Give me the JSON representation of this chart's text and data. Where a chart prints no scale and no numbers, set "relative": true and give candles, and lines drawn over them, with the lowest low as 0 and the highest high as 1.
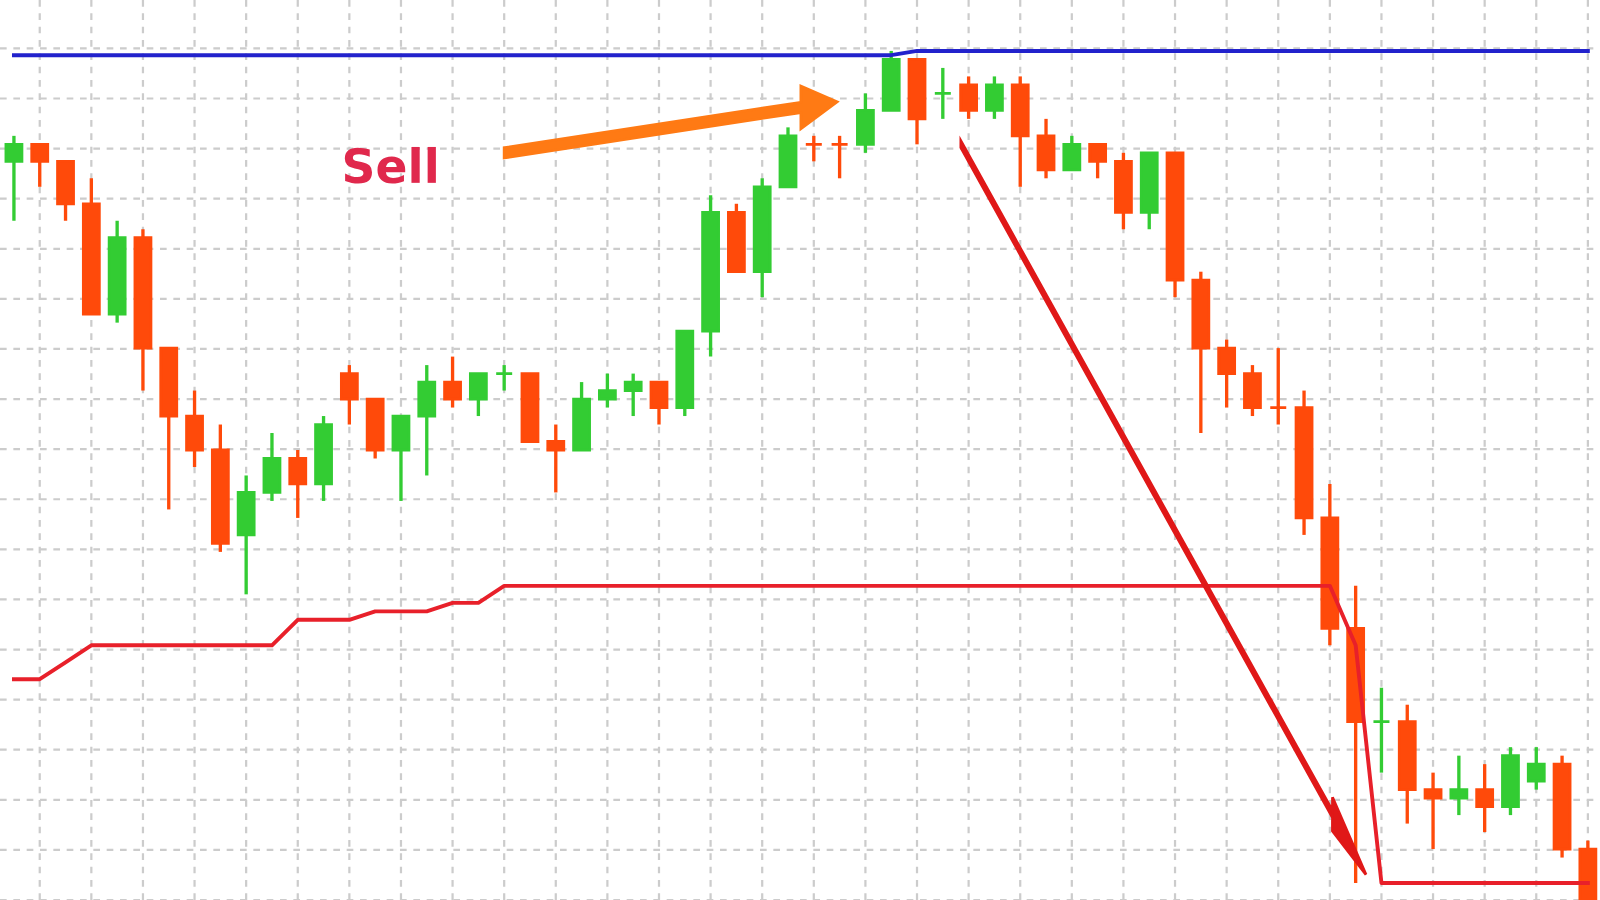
{
  "chart_data": {
    "type": "candlestick",
    "relative": true,
    "grid": true,
    "annotations": [
      "Sell"
    ],
    "categories": [
      null,
      null,
      null,
      null,
      null,
      null,
      null,
      null,
      null,
      null,
      null,
      null,
      null,
      null,
      null,
      null,
      null,
      null,
      null,
      null,
      null,
      null,
      null,
      null,
      null,
      null,
      null,
      null,
      null,
      null,
      null,
      null,
      null,
      null,
      null,
      null,
      null,
      null,
      null,
      null,
      null,
      null,
      null,
      null,
      null,
      null,
      null,
      null,
      null,
      null,
      null,
      null,
      null,
      null,
      null,
      null,
      null,
      null,
      null,
      null,
      null,
      null
    ],
    "ohlc": [
      [
        0.87,
        0.9,
        0.8,
        0.89
      ],
      [
        0.89,
        0.89,
        0.84,
        0.87
      ],
      [
        0.87,
        0.87,
        0.8,
        0.82
      ],
      [
        0.82,
        0.85,
        0.69,
        0.69
      ],
      [
        0.69,
        0.8,
        0.68,
        0.78
      ],
      [
        0.78,
        0.79,
        0.6,
        0.65
      ],
      [
        0.65,
        0.65,
        0.46,
        0.57
      ],
      [
        0.57,
        0.6,
        0.51,
        0.53
      ],
      [
        0.53,
        0.56,
        0.41,
        0.42
      ],
      [
        0.43,
        0.5,
        0.36,
        0.48
      ],
      [
        0.48,
        0.55,
        0.47,
        0.52
      ],
      [
        0.52,
        0.53,
        0.45,
        0.49
      ],
      [
        0.49,
        0.57,
        0.47,
        0.56
      ],
      [
        0.62,
        0.63,
        0.56,
        0.59
      ],
      [
        0.59,
        0.59,
        0.52,
        0.53
      ],
      [
        0.53,
        0.57,
        0.47,
        0.57
      ],
      [
        0.57,
        0.63,
        0.5,
        0.61
      ],
      [
        0.61,
        0.64,
        0.58,
        0.59
      ],
      [
        0.59,
        0.62,
        0.57,
        0.62
      ],
      [
        0.62,
        0.63,
        0.6,
        0.62
      ],
      [
        0.62,
        0.62,
        0.54,
        0.54
      ],
      [
        0.54,
        0.56,
        0.48,
        0.53
      ],
      [
        0.53,
        0.61,
        0.53,
        0.59
      ],
      [
        0.59,
        0.62,
        0.58,
        0.6
      ],
      [
        0.6,
        0.62,
        0.57,
        0.61
      ],
      [
        0.61,
        0.61,
        0.56,
        0.58
      ],
      [
        0.58,
        0.67,
        0.57,
        0.67
      ],
      [
        0.67,
        0.83,
        0.64,
        0.81
      ],
      [
        0.81,
        0.82,
        0.74,
        0.74
      ],
      [
        0.74,
        0.85,
        0.71,
        0.84
      ],
      [
        0.84,
        0.91,
        0.84,
        0.9
      ],
      [
        0.89,
        0.9,
        0.87,
        0.89
      ],
      [
        0.89,
        0.9,
        0.85,
        0.89
      ],
      [
        0.89,
        0.95,
        0.88,
        0.93
      ],
      [
        0.93,
        1.0,
        0.93,
        0.99
      ],
      [
        0.99,
        0.99,
        0.89,
        0.92
      ],
      [
        0.95,
        0.98,
        0.92,
        0.95
      ],
      [
        0.96,
        0.97,
        0.92,
        0.93
      ],
      [
        0.93,
        0.97,
        0.92,
        0.96
      ],
      [
        0.96,
        0.97,
        0.84,
        0.9
      ],
      [
        0.9,
        0.92,
        0.85,
        0.86
      ],
      [
        0.86,
        0.9,
        0.86,
        0.89
      ],
      [
        0.89,
        0.89,
        0.85,
        0.87
      ],
      [
        0.87,
        0.88,
        0.79,
        0.81
      ],
      [
        0.81,
        0.88,
        0.79,
        0.88
      ],
      [
        0.88,
        0.88,
        0.71,
        0.73
      ],
      [
        0.73,
        0.74,
        0.55,
        0.65
      ],
      [
        0.65,
        0.66,
        0.58,
        0.62
      ],
      [
        0.62,
        0.63,
        0.57,
        0.58
      ],
      [
        0.58,
        0.65,
        0.56,
        0.58
      ],
      [
        0.58,
        0.6,
        0.43,
        0.45
      ],
      [
        0.45,
        0.49,
        0.3,
        0.32
      ],
      [
        0.32,
        0.37,
        0.02,
        0.21
      ],
      [
        0.21,
        0.25,
        0.15,
        0.21
      ],
      [
        0.21,
        0.23,
        0.09,
        0.13
      ],
      [
        0.13,
        0.15,
        0.06,
        0.12
      ],
      [
        0.12,
        0.17,
        0.1,
        0.13
      ],
      [
        0.13,
        0.16,
        0.08,
        0.11
      ],
      [
        0.11,
        0.18,
        0.1,
        0.17
      ],
      [
        0.14,
        0.18,
        0.13,
        0.16
      ],
      [
        0.16,
        0.17,
        0.05,
        0.06
      ],
      [
        0.06,
        0.07,
        0.0,
        0.0
      ]
    ],
    "colors": [
      "#33cc33",
      "#ff4a0a",
      "#ff4a0a",
      "#ff4a0a",
      "#33cc33",
      "#ff4a0a",
      "#ff4a0a",
      "#ff4a0a",
      "#ff4a0a",
      "#33cc33",
      "#33cc33",
      "#ff4a0a",
      "#33cc33",
      "#ff4a0a",
      "#ff4a0a",
      "#33cc33",
      "#33cc33",
      "#ff4a0a",
      "#33cc33",
      "#33cc33",
      "#ff4a0a",
      "#ff4a0a",
      "#33cc33",
      "#33cc33",
      "#33cc33",
      "#ff4a0a",
      "#33cc33",
      "#33cc33",
      "#ff4a0a",
      "#33cc33",
      "#33cc33",
      "#ff4a0a",
      "#ff4a0a",
      "#33cc33",
      "#33cc33",
      "#ff4a0a",
      "#33cc33",
      "#ff4a0a",
      "#33cc33",
      "#ff4a0a",
      "#ff4a0a",
      "#33cc33",
      "#ff4a0a",
      "#ff4a0a",
      "#33cc33",
      "#ff4a0a",
      "#ff4a0a",
      "#ff4a0a",
      "#ff4a0a",
      "#ff4a0a",
      "#ff4a0a",
      "#ff4a0a",
      "#ff4a0a",
      "#33cc33",
      "#ff4a0a",
      "#ff4a0a",
      "#33cc33",
      "#ff4a0a",
      "#33cc33",
      "#33cc33",
      "#ff4a0a",
      "#ff4a0a"
    ],
    "series": [
      {
        "type": "line",
        "color": "#2222cc",
        "values": [
          0.995,
          0.995,
          0.995,
          0.995,
          0.995,
          0.995,
          0.995,
          0.995,
          0.995,
          0.995,
          0.995,
          0.995,
          0.995,
          0.995,
          0.995,
          0.995,
          0.995,
          0.995,
          0.995,
          0.995,
          0.995,
          0.995,
          0.995,
          0.995,
          0.995,
          0.995,
          0.995,
          0.995,
          0.995,
          0.995,
          0.995,
          0.995,
          0.995,
          0.995,
          0.995,
          1.0,
          1.0,
          1.0,
          1.0,
          1.0,
          1.0,
          1.0,
          1.0,
          1.0,
          1.0,
          1.0,
          1.0,
          1.0,
          1.0,
          1.0,
          1.0,
          1.0,
          1.0,
          1.0,
          1.0,
          1.0,
          1.0,
          1.0,
          1.0,
          1.0,
          1.0,
          1.0
        ]
      },
      {
        "type": "line",
        "color": "#e8202a",
        "values": [
          0.26,
          0.26,
          0.28,
          0.3,
          0.3,
          0.3,
          0.3,
          0.3,
          0.3,
          0.3,
          0.3,
          0.33,
          0.33,
          0.33,
          0.34,
          0.34,
          0.34,
          0.35,
          0.35,
          0.37,
          0.37,
          0.37,
          0.37,
          0.37,
          0.37,
          0.37,
          0.37,
          0.37,
          0.37,
          0.37,
          0.37,
          0.37,
          0.37,
          0.37,
          0.37,
          0.37,
          0.37,
          0.37,
          0.37,
          0.37,
          0.37,
          0.37,
          0.37,
          0.37,
          0.37,
          0.37,
          0.37,
          0.37,
          0.37,
          0.37,
          0.37,
          0.37,
          0.3,
          0.02,
          0.02,
          0.02,
          0.02,
          0.02,
          0.02,
          0.02,
          0.02,
          0.02
        ]
      }
    ]
  }
}
